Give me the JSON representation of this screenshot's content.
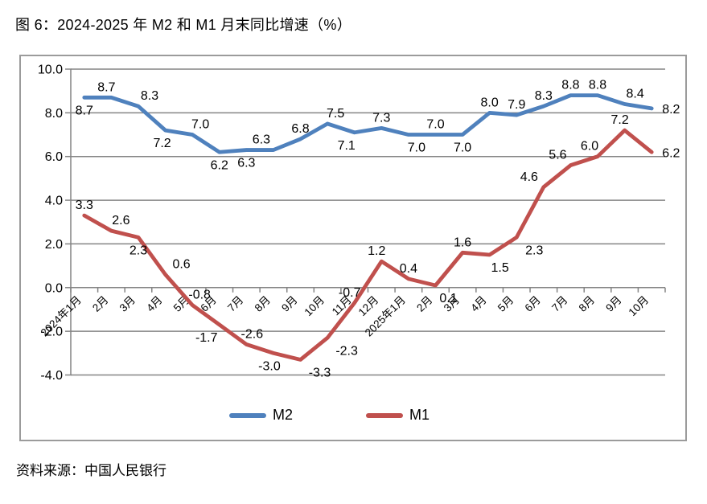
{
  "title": "图 6：2024-2025 年 M2 和 M1 月末同比增速（%）",
  "source": "资料来源：中国人民银行",
  "legend": {
    "m2": "M2",
    "m1": "M1"
  },
  "colors": {
    "m2": "#4F81BD",
    "m1": "#C0504D",
    "grid": "#848484",
    "frame": "#9B9B9B",
    "text": "#000000"
  },
  "chart_data": {
    "type": "line",
    "title": "图 6：2024-2025 年 M2 和 M1 月末同比增速（%）",
    "categories": [
      "2024年1月",
      "2月",
      "3月",
      "4月",
      "5月",
      "6月",
      "7月",
      "8月",
      "9月",
      "10月",
      "11月",
      "12月",
      "2025年1月",
      "2月",
      "3月",
      "4月",
      "5月",
      "6月",
      "7月",
      "8月",
      "9月",
      "10月"
    ],
    "series": [
      {
        "name": "M2",
        "color": "#4F81BD",
        "values": [
          8.7,
          8.7,
          8.3,
          7.2,
          7.0,
          6.2,
          6.3,
          6.3,
          6.8,
          7.5,
          7.1,
          7.3,
          7.0,
          7.0,
          7.0,
          8.0,
          7.9,
          8.3,
          8.8,
          8.8,
          8.4,
          8.2
        ]
      },
      {
        "name": "M1",
        "color": "#C0504D",
        "values": [
          3.3,
          2.6,
          2.3,
          0.6,
          -0.8,
          -1.7,
          -2.6,
          -3.0,
          -3.3,
          -2.3,
          -0.7,
          1.2,
          0.4,
          0.1,
          1.6,
          1.5,
          2.3,
          4.6,
          5.6,
          6.0,
          7.2,
          6.2
        ]
      }
    ],
    "ylim": [
      -4.0,
      10.0
    ],
    "yticks": [
      10.0,
      8.0,
      6.0,
      4.0,
      2.0,
      0.0,
      -2.0,
      -4.0
    ],
    "ytick_labels": [
      "10.0",
      "8.0",
      "6.0",
      "4.0",
      "2.0",
      "0.0",
      "-2.0",
      "-4.0"
    ],
    "grid": true,
    "legend_position": "bottom",
    "label_sides": {
      "M2": [
        "below",
        "above",
        "above",
        "below",
        "above",
        "below",
        "below",
        "above",
        "above",
        "above",
        "below",
        "above",
        "below",
        "above",
        "below",
        "above",
        "above",
        "above",
        "above",
        "above",
        "above",
        "right"
      ],
      "M1": [
        "above",
        "above",
        "below",
        "above",
        "above",
        "below",
        "above",
        "below",
        "below",
        "below",
        "above",
        "above",
        "above",
        "below",
        "above",
        "below",
        "below",
        "above",
        "above",
        "above",
        "above",
        "right"
      ]
    },
    "label_dx": {
      "M2": [
        0,
        -6,
        14,
        -4,
        10,
        0,
        0,
        -15,
        0,
        10,
        -10,
        0,
        10,
        0,
        0,
        0,
        0,
        0,
        0,
        0,
        13,
        0
      ],
      "M1": [
        0,
        12,
        0,
        20,
        9,
        -16,
        7,
        -5,
        24,
        24,
        -6,
        -6,
        0,
        16,
        0,
        13,
        22,
        -18,
        -16,
        -10,
        -6,
        0
      ]
    }
  }
}
